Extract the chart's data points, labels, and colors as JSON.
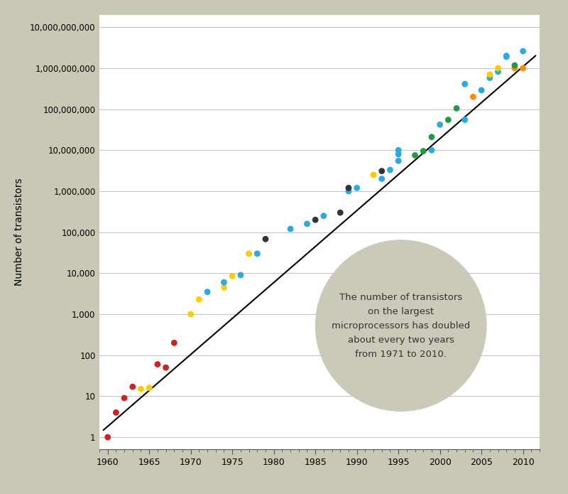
{
  "background_color": "#c8c8b4",
  "plot_bg_color": "#ffffff",
  "ylabel": "Number of transistors",
  "xlim": [
    1959,
    2012
  ],
  "ylim": [
    0.5,
    20000000000.0
  ],
  "yticks": [
    1,
    10,
    100,
    1000,
    10000,
    100000,
    1000000,
    10000000,
    100000000,
    1000000000,
    10000000000
  ],
  "ytick_labels": [
    "1",
    "10",
    "100",
    "1,000",
    "10,000",
    "100,000",
    "1,000,000",
    "10,000,000",
    "100,000,000",
    "1,000,000,000",
    "10,000,000,000"
  ],
  "xticks": [
    1960,
    1965,
    1970,
    1975,
    1980,
    1985,
    1990,
    1995,
    2000,
    2005,
    2010
  ],
  "annotation_text": "The number of transistors\non the largest\nmicroprocessors has doubled\nabout every two years\nfrom 1971 to 2010.",
  "trend_x": [
    1959.5,
    2011.5
  ],
  "trend_y": [
    1.5,
    2000000000
  ],
  "data_points": [
    {
      "year": 1960,
      "count": 1,
      "color": "#cc2222"
    },
    {
      "year": 1961,
      "count": 4,
      "color": "#cc2222"
    },
    {
      "year": 1962,
      "count": 9,
      "color": "#cc2222"
    },
    {
      "year": 1963,
      "count": 17,
      "color": "#cc2222"
    },
    {
      "year": 1964,
      "count": 15,
      "color": "#ffcc00"
    },
    {
      "year": 1965,
      "count": 16,
      "color": "#ffcc00"
    },
    {
      "year": 1966,
      "count": 60,
      "color": "#cc2222"
    },
    {
      "year": 1967,
      "count": 50,
      "color": "#cc2222"
    },
    {
      "year": 1968,
      "count": 200,
      "color": "#cc2222"
    },
    {
      "year": 1970,
      "count": 1000,
      "color": "#ffcc00"
    },
    {
      "year": 1971,
      "count": 2300,
      "color": "#ffcc00"
    },
    {
      "year": 1972,
      "count": 3500,
      "color": "#29abe2"
    },
    {
      "year": 1974,
      "count": 4500,
      "color": "#ffcc00"
    },
    {
      "year": 1974,
      "count": 6000,
      "color": "#29abe2"
    },
    {
      "year": 1975,
      "count": 8500,
      "color": "#ffcc00"
    },
    {
      "year": 1976,
      "count": 9000,
      "color": "#29abe2"
    },
    {
      "year": 1977,
      "count": 30000,
      "color": "#ffcc00"
    },
    {
      "year": 1978,
      "count": 30000,
      "color": "#29abe2"
    },
    {
      "year": 1979,
      "count": 68000,
      "color": "#333333"
    },
    {
      "year": 1982,
      "count": 120000,
      "color": "#29abe2"
    },
    {
      "year": 1984,
      "count": 160000,
      "color": "#29abe2"
    },
    {
      "year": 1985,
      "count": 200000,
      "color": "#333333"
    },
    {
      "year": 1986,
      "count": 250000,
      "color": "#29abe2"
    },
    {
      "year": 1988,
      "count": 300000,
      "color": "#333333"
    },
    {
      "year": 1989,
      "count": 1000000,
      "color": "#29abe2"
    },
    {
      "year": 1989,
      "count": 1200000,
      "color": "#333333"
    },
    {
      "year": 1990,
      "count": 1200000,
      "color": "#29abe2"
    },
    {
      "year": 1992,
      "count": 2500000,
      "color": "#ffcc00"
    },
    {
      "year": 1993,
      "count": 3100000,
      "color": "#333333"
    },
    {
      "year": 1993,
      "count": 2000000,
      "color": "#29abe2"
    },
    {
      "year": 1994,
      "count": 3300000,
      "color": "#29abe2"
    },
    {
      "year": 1995,
      "count": 5500000,
      "color": "#29abe2"
    },
    {
      "year": 1995,
      "count": 8000000,
      "color": "#29abe2"
    },
    {
      "year": 1995,
      "count": 10000000,
      "color": "#29abe2"
    },
    {
      "year": 1997,
      "count": 7500000,
      "color": "#229944"
    },
    {
      "year": 1998,
      "count": 9500000,
      "color": "#229944"
    },
    {
      "year": 1999,
      "count": 10000000,
      "color": "#29abe2"
    },
    {
      "year": 1999,
      "count": 21000000,
      "color": "#229944"
    },
    {
      "year": 2000,
      "count": 42000000,
      "color": "#29abe2"
    },
    {
      "year": 2001,
      "count": 55000000,
      "color": "#229944"
    },
    {
      "year": 2002,
      "count": 105000000,
      "color": "#229944"
    },
    {
      "year": 2003,
      "count": 55000000,
      "color": "#29abe2"
    },
    {
      "year": 2003,
      "count": 410000000,
      "color": "#29abe2"
    },
    {
      "year": 2004,
      "count": 200000000,
      "color": "#ff8c00"
    },
    {
      "year": 2005,
      "count": 290000000,
      "color": "#29abe2"
    },
    {
      "year": 2006,
      "count": 580000000,
      "color": "#29abe2"
    },
    {
      "year": 2006,
      "count": 700000000,
      "color": "#ffcc00"
    },
    {
      "year": 2007,
      "count": 820000000,
      "color": "#29abe2"
    },
    {
      "year": 2007,
      "count": 1000000000,
      "color": "#ffcc00"
    },
    {
      "year": 2008,
      "count": 1900000000,
      "color": "#29abe2"
    },
    {
      "year": 2008,
      "count": 2000000000,
      "color": "#29abe2"
    },
    {
      "year": 2009,
      "count": 1000000000,
      "color": "#ff8c00"
    },
    {
      "year": 2009,
      "count": 1170000000,
      "color": "#229944"
    },
    {
      "year": 2010,
      "count": 1000000000,
      "color": "#ff8c00"
    },
    {
      "year": 2010,
      "count": 2600000000,
      "color": "#29abe2"
    }
  ]
}
